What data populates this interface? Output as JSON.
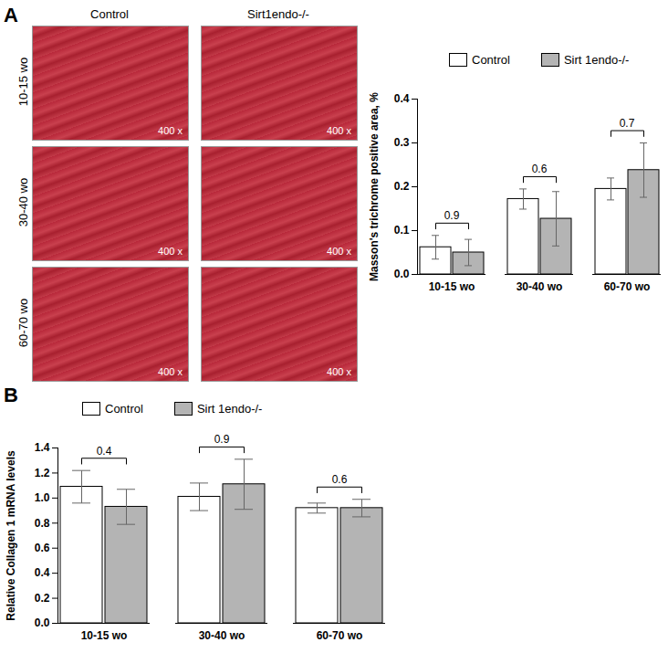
{
  "panel_labels": [
    "A",
    "B"
  ],
  "micrographs": {
    "column_titles": [
      "Control",
      "Sirt1endo-/-"
    ],
    "row_titles": [
      "10-15 wo",
      "30-40 wo",
      "60-70 wo"
    ],
    "magnification": "400 x"
  },
  "chart_data": [
    {
      "type": "bar",
      "ylabel": "Masson's trichrome positive area, %",
      "categories": [
        "10-15 wo",
        "30-40 wo",
        "60-70 wo"
      ],
      "series": [
        {
          "name": "Control",
          "color": "#ffffff",
          "values": [
            0.062,
            0.172,
            0.195
          ],
          "errors": [
            0.027,
            0.023,
            0.025
          ]
        },
        {
          "name": "Sirt 1endo-/-",
          "color": "#b4b4b4",
          "values": [
            0.05,
            0.127,
            0.238
          ],
          "errors": [
            0.03,
            0.062,
            0.062
          ]
        }
      ],
      "annotations": [
        0.9,
        0.6,
        0.7
      ],
      "ylim": [
        0,
        0.4
      ],
      "yticks": [
        {
          "value": 0,
          "label": "0.0"
        },
        0.1,
        0.2,
        0.3,
        0.4
      ],
      "legend": "top"
    },
    {
      "type": "bar",
      "ylabel": "Relative Collagen 1 mRNA levels",
      "categories": [
        "10-15 wo",
        "30-40 wo",
        "60-70 wo"
      ],
      "series": [
        {
          "name": "Control",
          "color": "#ffffff",
          "values": [
            1.09,
            1.01,
            0.92
          ],
          "errors": [
            0.13,
            0.11,
            0.04
          ]
        },
        {
          "name": "Sirt 1endo-/-",
          "color": "#b4b4b4",
          "values": [
            0.93,
            1.11,
            0.92
          ],
          "errors": [
            0.14,
            0.2,
            0.07
          ]
        }
      ],
      "annotations": [
        0.4,
        0.9,
        0.6
      ],
      "ylim": [
        0,
        1.4
      ],
      "yticks": [
        {
          "value": 0,
          "label": "0.0"
        },
        0.2,
        0.4,
        0.6,
        0.8,
        {
          "value": 1,
          "label": "1.0"
        },
        1.2,
        1.4
      ],
      "legend": "top"
    }
  ]
}
